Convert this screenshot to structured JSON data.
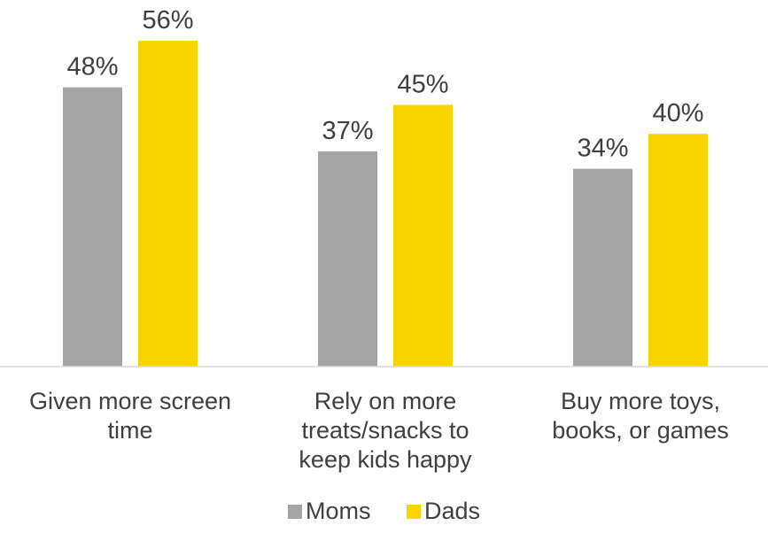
{
  "chart_data": {
    "type": "bar",
    "title": "",
    "xlabel": "",
    "ylabel": "",
    "ylim": [
      0,
      60
    ],
    "grid": false,
    "legend_position": "bottom",
    "value_suffix": "%",
    "categories": [
      [
        "Given more screen",
        "time"
      ],
      [
        "Rely on more",
        "treats/snacks to",
        "keep kids happy"
      ],
      [
        "Buy more toys,",
        "books, or games"
      ]
    ],
    "series": [
      {
        "name": "Moms",
        "color": "#a5a5a5",
        "values": [
          48,
          37,
          34
        ]
      },
      {
        "name": "Dads",
        "color": "#f9d500",
        "values": [
          56,
          45,
          40
        ]
      }
    ]
  }
}
